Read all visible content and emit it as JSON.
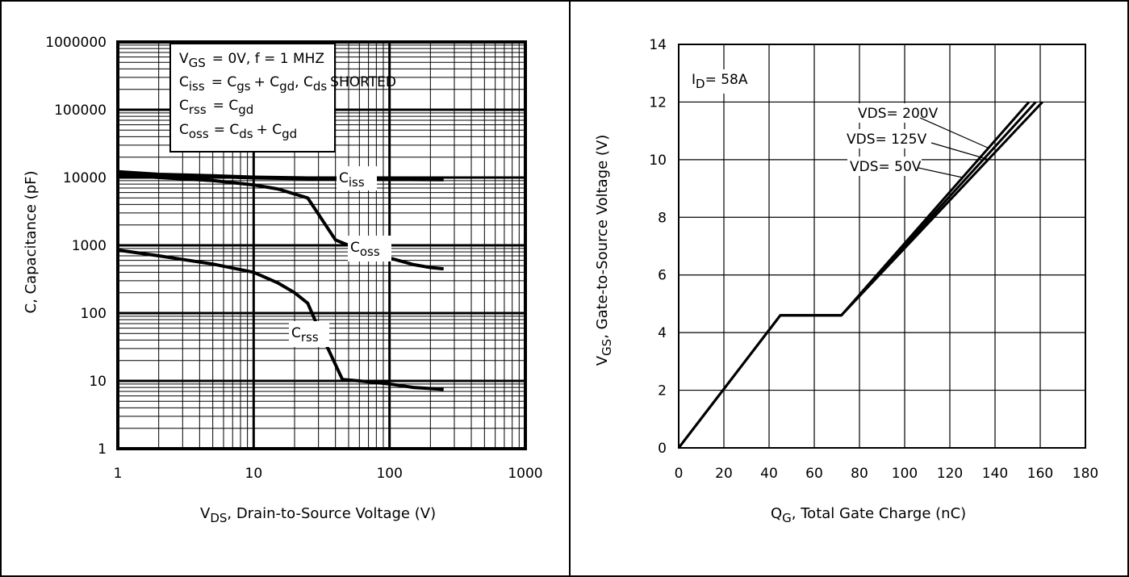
{
  "chart_data": [
    {
      "type": "line",
      "scale": "log-log",
      "xlabel": "V",
      "xlabel_sub": "DS",
      "xlabel_rest": ", Drain-to-Source Voltage (V)",
      "ylabel": "C, Capacitance (pF)",
      "xlim": [
        1,
        1000
      ],
      "ylim": [
        1,
        1000000
      ],
      "x_ticks": [
        "1",
        "10",
        "100",
        "1000"
      ],
      "y_ticks": [
        "1",
        "10",
        "100",
        "1000",
        "10000",
        "100000",
        "1000000"
      ],
      "grid": true,
      "legend": {
        "placement": "top-left",
        "line1": {
          "a": "V",
          "a_sub": "GS",
          "b": "= 0V,      f = 1 MHZ"
        },
        "line2": {
          "a": "C",
          "a_sub": "iss",
          "b": "= C",
          "b_sub": "gs",
          "c": "+ C",
          "c_sub": "gd",
          "d": ",  C",
          "d_sub": "ds",
          "e": "SHORTED"
        },
        "line3": {
          "a": "C",
          "a_sub": "rss",
          "b": "= C",
          "b_sub": "gd"
        },
        "line4": {
          "a": "C",
          "a_sub": "oss",
          "b": "= C",
          "b_sub": "ds",
          "c": "+ C",
          "c_sub": "gd"
        }
      },
      "series": [
        {
          "name": "C",
          "name_sub": "iss",
          "x": [
            1,
            2,
            5,
            10,
            20,
            40,
            100,
            250
          ],
          "y": [
            12000,
            11000,
            10500,
            10000,
            9800,
            9600,
            9500,
            9400
          ]
        },
        {
          "name": "C",
          "name_sub": "oss",
          "x": [
            1,
            2,
            5,
            10,
            15,
            25,
            40,
            50,
            70,
            100,
            150,
            200,
            250
          ],
          "y": [
            11000,
            10000,
            9000,
            7800,
            6800,
            5000,
            1200,
            1000,
            800,
            650,
            520,
            470,
            450
          ]
        },
        {
          "name": "C",
          "name_sub": "rss",
          "x": [
            1,
            2,
            5,
            10,
            15,
            20,
            25,
            30,
            45,
            60,
            100,
            150,
            250
          ],
          "y": [
            850,
            700,
            530,
            400,
            280,
            200,
            140,
            60,
            10.5,
            10,
            9,
            8,
            7.5
          ]
        }
      ]
    },
    {
      "type": "line",
      "xlabel": "Q",
      "xlabel_sub": "G",
      "xlabel_rest": ",  Total Gate Charge (nC)",
      "ylabel": "V",
      "ylabel_sub": "GS",
      "ylabel_rest": ", Gate-to-Source Voltage (V)",
      "xlim": [
        0,
        180
      ],
      "ylim": [
        0,
        14
      ],
      "x_ticks": [
        "0",
        "20",
        "40",
        "60",
        "80",
        "100",
        "120",
        "140",
        "160",
        "180"
      ],
      "y_ticks": [
        "0",
        "2",
        "4",
        "6",
        "8",
        "10",
        "12",
        "14"
      ],
      "grid": true,
      "annotation": {
        "a": "I",
        "a_sub": "D",
        "b": "= 58A"
      },
      "series": [
        {
          "name": "VDS= 200V",
          "x": [
            0,
            45,
            72,
            155
          ],
          "y": [
            0,
            4.6,
            4.6,
            12
          ]
        },
        {
          "name": "VDS= 125V",
          "x": [
            0,
            45,
            72,
            158
          ],
          "y": [
            0,
            4.6,
            4.6,
            12
          ]
        },
        {
          "name": "VDS= 50V",
          "x": [
            0,
            45,
            72,
            161
          ],
          "y": [
            0,
            4.6,
            4.6,
            12
          ]
        }
      ]
    }
  ]
}
